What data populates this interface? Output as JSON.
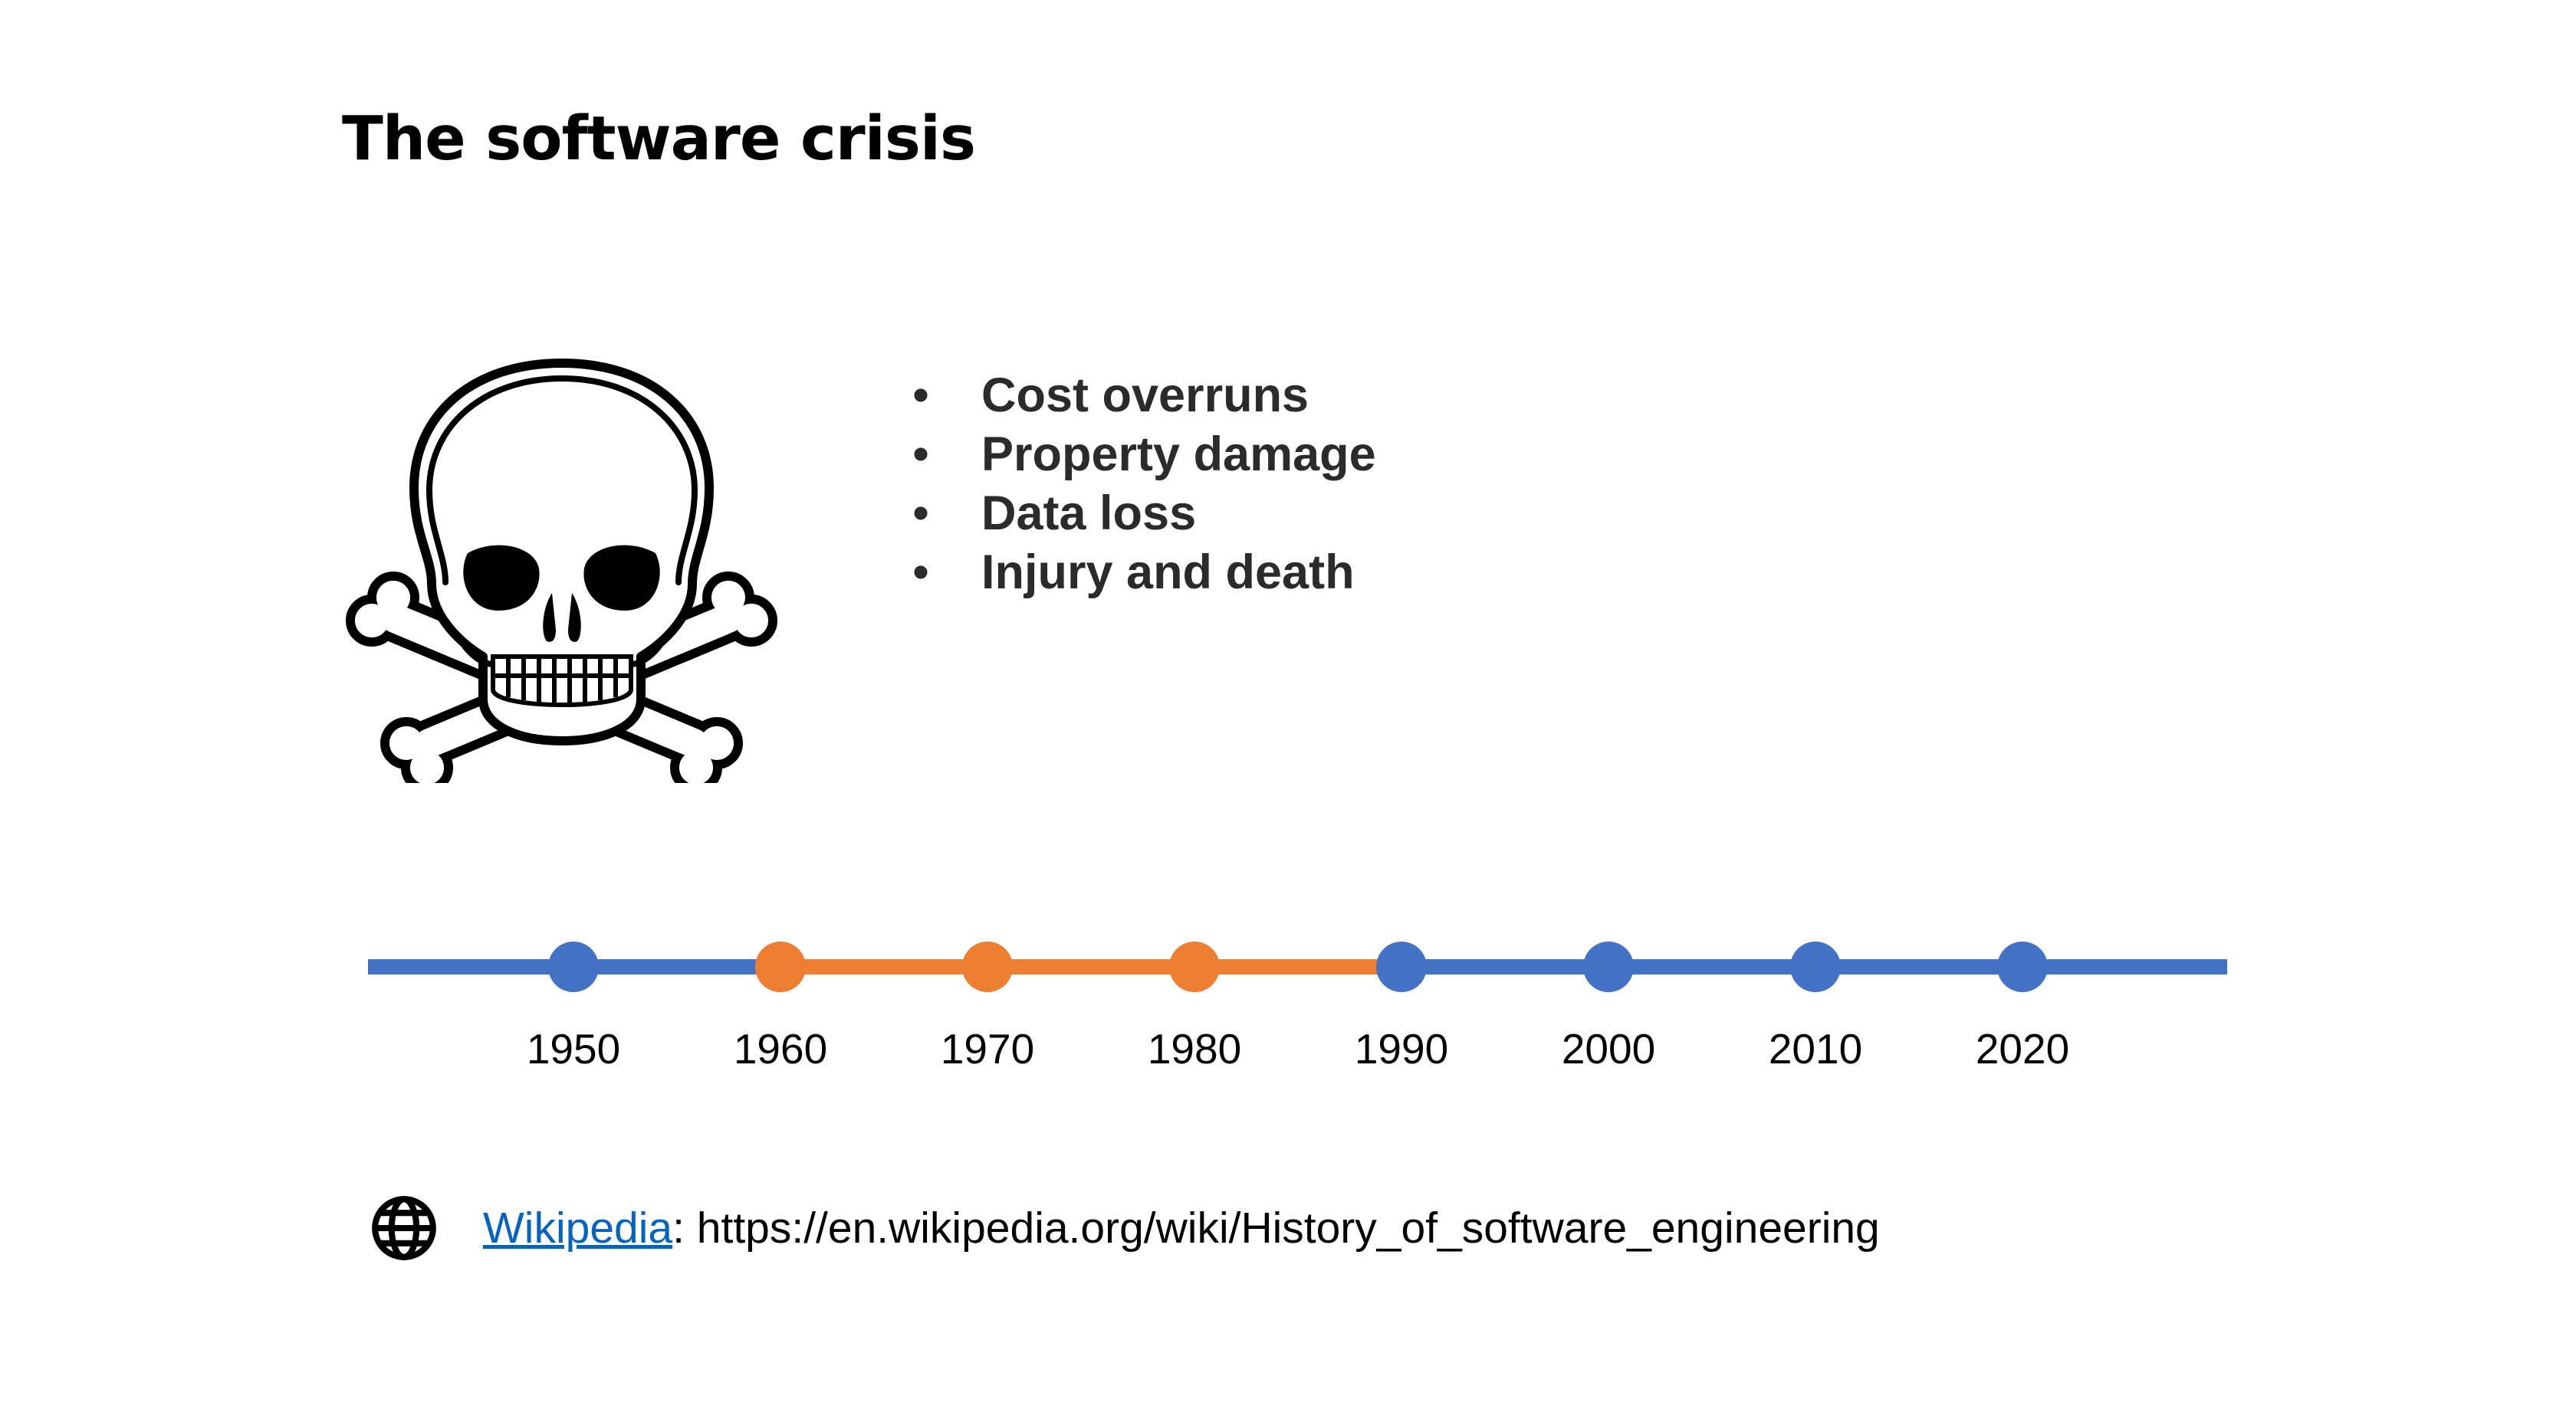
{
  "slide": {
    "title": "The software crisis",
    "bullets": [
      "Cost overruns",
      "Property damage",
      "Data loss",
      "Injury and death"
    ],
    "bullet_marker": "•",
    "skull_icon": "skull-and-crossbones-icon"
  },
  "timeline": {
    "years": [
      "1950",
      "1960",
      "1970",
      "1980",
      "1990",
      "2000",
      "2010",
      "2020"
    ],
    "highlighted_years": [
      "1960",
      "1970",
      "1980"
    ],
    "highlight_range": [
      "1960",
      "1990"
    ],
    "colors": {
      "base": "#4472c4",
      "highlight": "#ed7d31"
    }
  },
  "source": {
    "icon": "globe-icon",
    "link_text": "Wikipedia",
    "separator": ":",
    "url": "https://en.wikipedia.org/wiki/History_of_software_engineering",
    "link_color": "#0563c1"
  }
}
